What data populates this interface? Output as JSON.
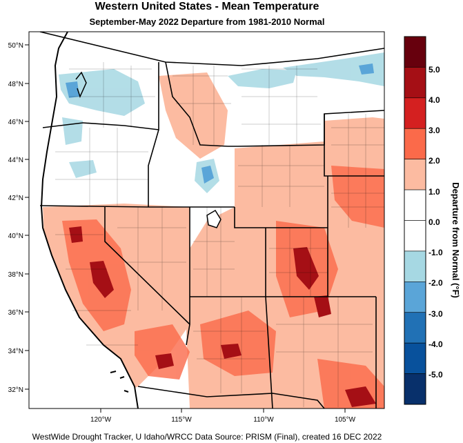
{
  "title": "Western United States - Mean Temperature",
  "subtitle": "September-May 2022  Departure from 1981-2010 Normal",
  "footer": "WestWide Drought Tracker, U Idaho/WRCC Data Source: PRISM (Final), created 16 DEC 2022",
  "map": {
    "lat_labels": [
      "50°N",
      "48°N",
      "46°N",
      "44°N",
      "42°N",
      "40°N",
      "38°N",
      "36°N",
      "34°N",
      "32°N"
    ],
    "lon_labels": [
      "120°W",
      "115°W",
      "110°W",
      "105°W"
    ]
  },
  "legend": {
    "title": "Departure from Normal (°F)",
    "labels": [
      "5.0",
      "4.0",
      "3.0",
      "2.0",
      "1.0",
      "0.0",
      "-1.0",
      "-2.0",
      "-3.0",
      "-4.0",
      "-5.0"
    ],
    "colors": [
      "#67000d",
      "#a50f15",
      "#d42020",
      "#fb6a4a",
      "#fcbba1",
      "#ffffff",
      "#ffffff",
      "#a6d8e3",
      "#5aa5d8",
      "#2171b5",
      "#08519c",
      "#08306b"
    ]
  }
}
